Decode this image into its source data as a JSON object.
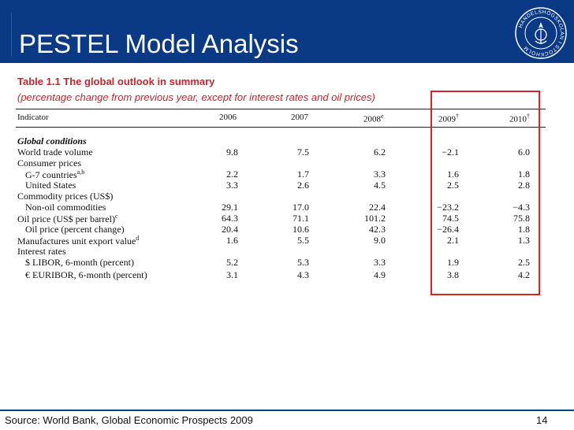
{
  "slide": {
    "title": "PESTEL Model Analysis",
    "logo_text": "HANDELSHÖGSKOLAN I STOCKHOLM",
    "source": "Source: World Bank, Global Economic Prospects 2009",
    "page_number": "14"
  },
  "table": {
    "title": "Table 1.1   The global outlook in summary",
    "subtitle": "(percentage change from previous year, except for interest rates and oil prices)",
    "header": {
      "indicator": "Indicator",
      "y2006": "2006",
      "y2007": "2007",
      "y2008": "2008",
      "y2008_mark": "e",
      "y2009": "2009",
      "y2009_mark": "†",
      "y2010": "2010",
      "y2010_mark": "†"
    },
    "rows": [
      {
        "label": "Global conditions",
        "values": [
          "",
          "",
          "",
          "",
          ""
        ]
      },
      {
        "label": "World trade volume",
        "values": [
          "9.8",
          "7.5",
          "6.2",
          "−2.1",
          "6.0"
        ]
      },
      {
        "label": "Consumer prices",
        "values": [
          "",
          "",
          "",
          "",
          ""
        ]
      },
      {
        "label": "G-7 countries",
        "mark": "a,b",
        "values": [
          "2.2",
          "1.7",
          "3.3",
          "1.6",
          "1.8"
        ]
      },
      {
        "label": "United States",
        "values": [
          "3.3",
          "2.6",
          "4.5",
          "2.5",
          "2.8"
        ]
      },
      {
        "label": "Commodity prices (US$)",
        "values": [
          "",
          "",
          "",
          "",
          ""
        ]
      },
      {
        "label": "Non-oil commodities",
        "values": [
          "29.1",
          "17.0",
          "22.4",
          "−23.2",
          "−4.3"
        ]
      },
      {
        "label": "Oil price (US$ per barrel)",
        "mark": "c",
        "values": [
          "64.3",
          "71.1",
          "101.2",
          "74.5",
          "75.8"
        ]
      },
      {
        "label": "Oil price (percent change)",
        "values": [
          "20.4",
          "10.6",
          "42.3",
          "−26.4",
          "1.8"
        ]
      },
      {
        "label": "Manufactures unit export value",
        "mark": "d",
        "values": [
          "1.6",
          "5.5",
          "9.0",
          "2.1",
          "1.3"
        ]
      },
      {
        "label": "Interest rates",
        "values": [
          "",
          "",
          "",
          "",
          ""
        ]
      },
      {
        "label": "$ LIBOR, 6-month (percent)",
        "values": [
          "5.2",
          "5.3",
          "3.3",
          "1.9",
          "2.5"
        ]
      },
      {
        "label": "€ EURIBOR, 6-month (percent)",
        "values": [
          "3.1",
          "4.3",
          "4.9",
          "3.8",
          "4.2"
        ]
      }
    ]
  },
  "colors": {
    "header_bg": "#0a3a86",
    "title_text": "#c0282e",
    "highlight_box": "#d6242a"
  }
}
